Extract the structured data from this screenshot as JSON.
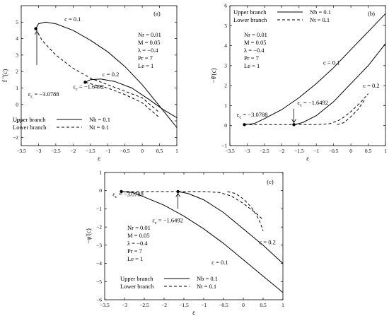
{
  "chart_data": [
    {
      "id": "a",
      "type": "line",
      "panel_label": "(a)",
      "xlabel": "ε",
      "ylabel": "f ''(c)",
      "xlim": [
        -3.5,
        1
      ],
      "ylim": [
        -2.5,
        6
      ],
      "xticks": [
        -3.5,
        -3,
        -2.5,
        -2,
        -1.5,
        -1,
        -0.5,
        0,
        0.5,
        1
      ],
      "yticks": [
        -2,
        -1,
        0,
        1,
        2,
        3,
        4,
        5
      ],
      "params": [
        "Nr = 0.01",
        "M = 0.05",
        "λ = -0.4",
        "Pr = 7",
        "Le = 1"
      ],
      "legend": [
        {
          "name": "Upper branch",
          "dash": "solid",
          "param": "Nb = 0.1"
        },
        {
          "name": "Lower branch",
          "dash": "dashed",
          "param": "Nt = 0.1"
        }
      ],
      "annotations": [
        {
          "text": "c = 0.1",
          "x": -2.25,
          "y": 5.05
        },
        {
          "text": "c = 0.2",
          "x": -1.15,
          "y": 1.7
        },
        {
          "text": "ε",
          "sub": "c",
          "value": " = -3.0788",
          "x": -3.3,
          "y": 0.5
        },
        {
          "text": "ε",
          "sub": "c",
          "value": " = -1.6492",
          "x": -2.0,
          "y": 0.95
        }
      ],
      "critical_points": [
        {
          "x": -3.0788,
          "y": 4.6
        },
        {
          "x": -1.6492,
          "y": 1.35
        }
      ],
      "arrow": {
        "from": [
          -3.05,
          2.4
        ],
        "to": [
          -3.05,
          4.45
        ]
      },
      "series": [
        {
          "dash": "solid",
          "points": [
            [
              -3.0788,
              4.6
            ],
            [
              -3.0,
              4.9
            ],
            [
              -2.8,
              5.0
            ],
            [
              -2.5,
              4.9
            ],
            [
              -2.0,
              4.5
            ],
            [
              -1.5,
              3.9
            ],
            [
              -1.0,
              3.2
            ],
            [
              -0.5,
              2.3
            ],
            [
              0.0,
              1.2
            ],
            [
              0.5,
              -0.1
            ],
            [
              1.0,
              -1.4
            ]
          ]
        },
        {
          "dash": "dashed",
          "points": [
            [
              -3.0788,
              4.6
            ],
            [
              -2.9,
              3.9
            ],
            [
              -2.5,
              3.0
            ],
            [
              -2.0,
              2.2
            ],
            [
              -1.5,
              1.6
            ],
            [
              -1.0,
              1.2
            ],
            [
              -0.5,
              0.8
            ],
            [
              0.0,
              0.4
            ],
            [
              0.5,
              -0.5
            ]
          ]
        },
        {
          "dash": "solid",
          "points": [
            [
              -1.6492,
              1.35
            ],
            [
              -1.5,
              1.5
            ],
            [
              -1.2,
              1.55
            ],
            [
              -0.8,
              1.4
            ],
            [
              -0.3,
              1.0
            ],
            [
              0.2,
              0.3
            ],
            [
              0.6,
              -0.3
            ],
            [
              1.0,
              -0.8
            ]
          ]
        },
        {
          "dash": "dashed",
          "points": [
            [
              -1.6492,
              1.35
            ],
            [
              -1.4,
              1.2
            ],
            [
              -1.0,
              1.0
            ],
            [
              -0.5,
              0.6
            ],
            [
              0.0,
              0.1
            ],
            [
              0.5,
              -0.8
            ]
          ]
        }
      ]
    },
    {
      "id": "b",
      "type": "line",
      "panel_label": "(b)",
      "xlabel": "ε",
      "ylabel": "−θ'(c)",
      "xlim": [
        -3.5,
        1
      ],
      "ylim": [
        -1,
        6
      ],
      "xticks": [
        -3.5,
        -3,
        -2.5,
        -2,
        -1.5,
        -1,
        -0.5,
        0,
        0.5,
        1
      ],
      "yticks": [
        -1,
        0,
        1,
        2,
        3,
        4,
        5,
        6
      ],
      "params": [
        "Nr = 0.01",
        "M = 0.05",
        "λ = -0.4",
        "Pr = 7",
        "Le = 1"
      ],
      "legend": [
        {
          "name": "Upper branch",
          "dash": "solid",
          "param": "Nb = 0.1"
        },
        {
          "name": "Lower branch",
          "dash": "dashed",
          "param": "Nt = 0.1"
        }
      ],
      "annotations": [
        {
          "text": "c = 0.1",
          "x": -0.8,
          "y": 3.05
        },
        {
          "text": "c = 0.2",
          "x": 0.35,
          "y": 1.9
        },
        {
          "text": "ε",
          "sub": "c",
          "value": " = -1.6492",
          "x": -1.55,
          "y": 1.05
        },
        {
          "text": "ε",
          "sub": "c",
          "value": " = -3.0788",
          "x": -3.3,
          "y": 0.45
        }
      ],
      "critical_points": [
        {
          "x": -3.0788,
          "y": 0.05
        },
        {
          "x": -1.6492,
          "y": 0.05
        }
      ],
      "arrow": {
        "from": [
          -1.6492,
          0.85
        ],
        "to": [
          -1.6492,
          0.15
        ]
      },
      "series": [
        {
          "dash": "solid",
          "points": [
            [
              -3.0788,
              0.05
            ],
            [
              -2.8,
              0.1
            ],
            [
              -2.5,
              0.35
            ],
            [
              -2.0,
              0.8
            ],
            [
              -1.5,
              1.4
            ],
            [
              -1.0,
              2.1
            ],
            [
              -0.5,
              2.9
            ],
            [
              0.0,
              3.8
            ],
            [
              0.5,
              4.7
            ],
            [
              1.0,
              5.6
            ]
          ]
        },
        {
          "dash": "solid",
          "points": [
            [
              -1.6492,
              0.05
            ],
            [
              -1.4,
              0.15
            ],
            [
              -1.0,
              0.5
            ],
            [
              -0.5,
              1.2
            ],
            [
              0.0,
              2.1
            ],
            [
              0.5,
              3.0
            ],
            [
              1.0,
              4.1
            ]
          ]
        },
        {
          "dash": "dashed",
          "points": [
            [
              -3.0788,
              0.05
            ],
            [
              -2.5,
              0.05
            ],
            [
              -2.0,
              0.05
            ],
            [
              -1.6492,
              0.05
            ]
          ]
        },
        {
          "dash": "dashed",
          "points": [
            [
              -1.6492,
              0.05
            ],
            [
              -1.0,
              0.05
            ],
            [
              -0.6,
              0.1
            ],
            [
              -0.3,
              0.3
            ],
            [
              0.0,
              0.7
            ],
            [
              0.3,
              1.2
            ],
            [
              0.5,
              1.6
            ]
          ]
        },
        {
          "dash": "dashed",
          "points": [
            [
              -0.4,
              0.05
            ],
            [
              -0.2,
              0.15
            ],
            [
              0.0,
              0.45
            ],
            [
              0.2,
              0.8
            ],
            [
              0.4,
              1.3
            ]
          ]
        }
      ]
    },
    {
      "id": "c",
      "type": "line",
      "panel_label": "(c)",
      "xlabel": "ε",
      "ylabel": "−φ'(c)",
      "xlim": [
        -3.5,
        1
      ],
      "ylim": [
        -6,
        1
      ],
      "xticks": [
        -3.5,
        -3,
        -2.5,
        -2,
        -1.5,
        -1,
        -0.5,
        0,
        0.5,
        1
      ],
      "yticks": [
        -6,
        -5,
        -4,
        -3,
        -2,
        -1,
        0,
        1
      ],
      "params": [
        "Nr = 0.01",
        "M = 0.05",
        "λ = -0.4",
        "Pr = 7",
        "Le = 1"
      ],
      "legend": [
        {
          "name": "Upper branch",
          "dash": "solid",
          "param": "Nb = 0.1"
        },
        {
          "name": "Lower branch",
          "dash": "dashed",
          "param": "Nt = 0.1"
        }
      ],
      "annotations": [
        {
          "text": "c = 0.2",
          "x": 0.4,
          "y": -2.95
        },
        {
          "text": "c = 0.1",
          "x": -0.8,
          "y": -4.05
        },
        {
          "text": "ε",
          "sub": "c",
          "value": " = -3.0788",
          "x": -3.3,
          "y": -0.3
        },
        {
          "text": "ε",
          "sub": "c",
          "value": " = -1.6492",
          "x": -2.3,
          "y": -1.75
        }
      ],
      "critical_points": [
        {
          "x": -3.0788,
          "y": -0.05
        },
        {
          "x": -1.6492,
          "y": -0.05
        }
      ],
      "arrow": {
        "from": [
          -1.6492,
          -1.0
        ],
        "to": [
          -1.6492,
          -0.15
        ]
      },
      "series": [
        {
          "dash": "solid",
          "points": [
            [
              -3.0788,
              -0.05
            ],
            [
              -2.8,
              -0.1
            ],
            [
              -2.5,
              -0.35
            ],
            [
              -2.0,
              -0.8
            ],
            [
              -1.5,
              -1.4
            ],
            [
              -1.0,
              -2.1
            ],
            [
              -0.5,
              -2.9
            ],
            [
              0.0,
              -3.8
            ],
            [
              0.5,
              -4.7
            ],
            [
              1.0,
              -5.6
            ]
          ]
        },
        {
          "dash": "solid",
          "points": [
            [
              -1.6492,
              -0.05
            ],
            [
              -1.4,
              -0.15
            ],
            [
              -1.0,
              -0.5
            ],
            [
              -0.5,
              -1.2
            ],
            [
              0.0,
              -2.1
            ],
            [
              0.5,
              -3.0
            ],
            [
              1.0,
              -4.0
            ]
          ]
        },
        {
          "dash": "dashed",
          "points": [
            [
              -3.0788,
              -0.05
            ],
            [
              -2.5,
              -0.05
            ],
            [
              -2.0,
              -0.05
            ],
            [
              -1.6492,
              -0.05
            ]
          ]
        },
        {
          "dash": "dashed",
          "points": [
            [
              -1.6492,
              -0.05
            ],
            [
              -1.0,
              -0.05
            ],
            [
              -0.6,
              -0.1
            ],
            [
              -0.3,
              -0.3
            ],
            [
              0.0,
              -0.7
            ],
            [
              0.3,
              -1.2
            ],
            [
              0.5,
              -1.6
            ]
          ]
        },
        {
          "dash": "dashed",
          "points": [
            [
              -0.4,
              -0.05
            ],
            [
              -0.2,
              -0.15
            ],
            [
              0.0,
              -0.45
            ],
            [
              0.2,
              -0.9
            ],
            [
              0.4,
              -1.6
            ],
            [
              0.5,
              -2.2
            ]
          ]
        }
      ]
    }
  ]
}
